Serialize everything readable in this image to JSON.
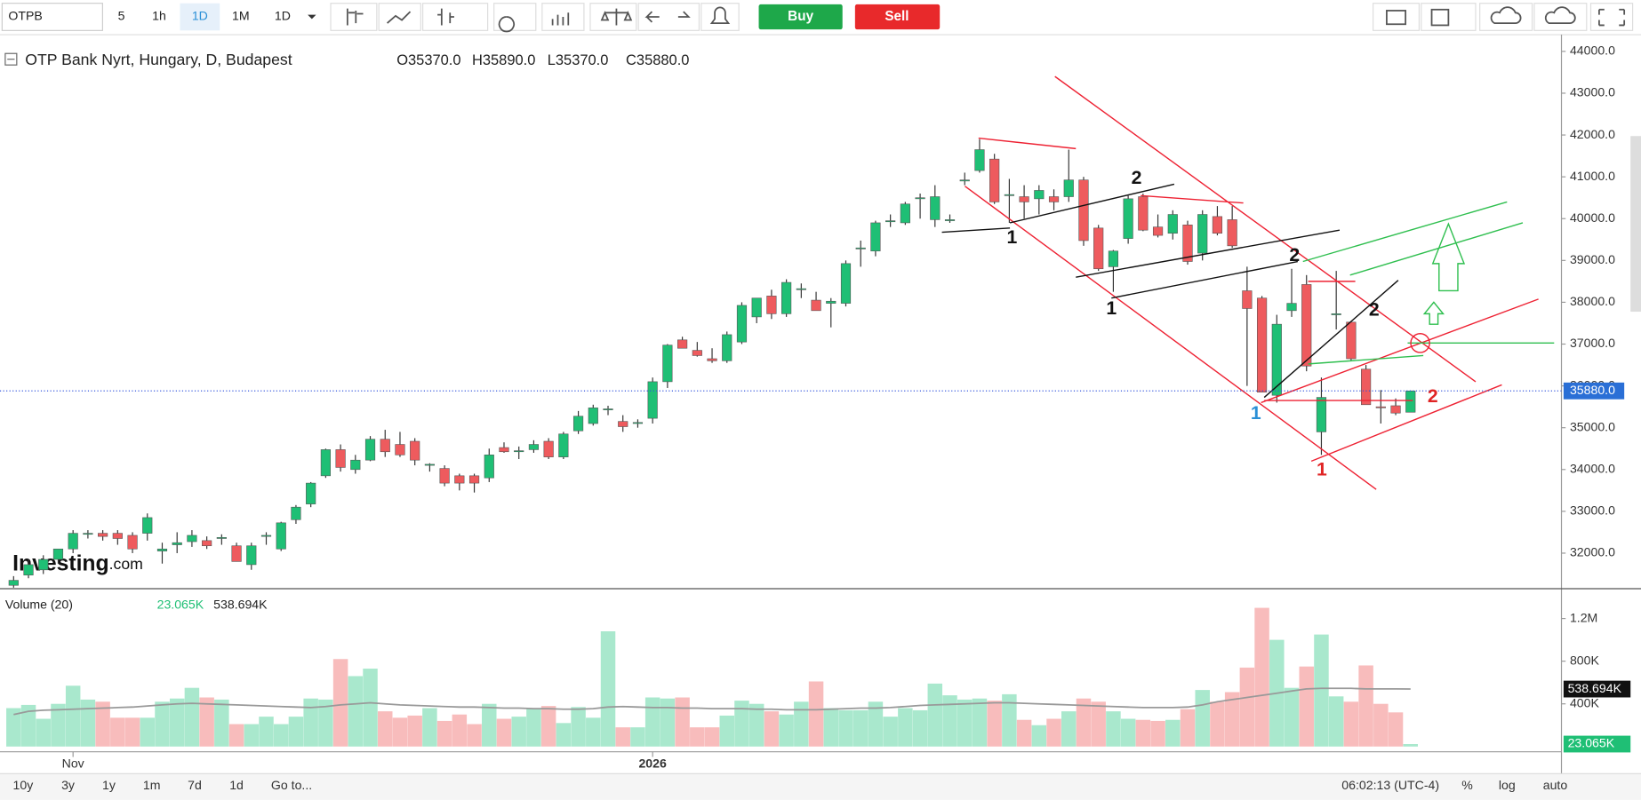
{
  "toolbar": {
    "symbol": "OTPB",
    "intervals": [
      "5",
      "1h",
      "1D",
      "1M",
      "1D"
    ],
    "buy": "Buy",
    "sell": "Sell"
  },
  "legend": {
    "title": "OTP Bank Nyrt, Hungary, D, Budapest",
    "open": "O35370.0",
    "high": "H35890.0",
    "low": "L35370.0",
    "close": "C35880.0"
  },
  "chart_data": {
    "type": "candlestick",
    "categories": [
      null,
      null,
      null,
      null,
      "Nov",
      null,
      null,
      null,
      null,
      null,
      null,
      null,
      null,
      null,
      null,
      null,
      null,
      null,
      null,
      null,
      null,
      null,
      null,
      null,
      null,
      null,
      null,
      null,
      null,
      null,
      null,
      null,
      null,
      null,
      null,
      null,
      null,
      null,
      null,
      null,
      null,
      null,
      null,
      "2026",
      null,
      null,
      null,
      null,
      null,
      null,
      null,
      null,
      null,
      null,
      null,
      null,
      null,
      null,
      null,
      null,
      null,
      null,
      null,
      null,
      null,
      null,
      null,
      null,
      null,
      null,
      null,
      null,
      null,
      null,
      null,
      null,
      null,
      null,
      null,
      null,
      null,
      null,
      null,
      null,
      null,
      null,
      null,
      null,
      null,
      null,
      null,
      null,
      null,
      null,
      null
    ],
    "open": [
      31230,
      31475,
      31600,
      31850,
      32100,
      32450,
      32475,
      32475,
      32425,
      32475,
      32050,
      32200,
      32275,
      32300,
      32350,
      32175,
      31725,
      32400,
      32100,
      32800,
      33175,
      33850,
      34475,
      34000,
      34225,
      34725,
      34600,
      34675,
      34100,
      34025,
      33850,
      33850,
      33800,
      34525,
      34425,
      34475,
      34675,
      34300,
      34925,
      35100,
      35425,
      35150,
      35100,
      35225,
      36100,
      37100,
      36850,
      36650,
      36600,
      37050,
      37650,
      38150,
      37725,
      38300,
      38050,
      37975,
      37975,
      39275,
      39225,
      39925,
      39900,
      40475,
      39975,
      39975,
      40900,
      41150,
      41425,
      40550,
      40525,
      40475,
      40525,
      40525,
      40925,
      39775,
      38850,
      39525,
      40525,
      39800,
      39650,
      39850,
      39175,
      40050,
      39975,
      38275,
      38100,
      35775,
      37800,
      38425,
      34900,
      37700,
      37525,
      36400,
      35500,
      35525,
      35370
    ],
    "high": [
      31450,
      31850,
      31950,
      32100,
      32550,
      32550,
      32550,
      32550,
      32500,
      32950,
      32250,
      32500,
      32550,
      32400,
      32450,
      32250,
      32250,
      32500,
      32750,
      33150,
      33700,
      34500,
      34600,
      34350,
      34800,
      34950,
      34900,
      34750,
      34150,
      34100,
      33900,
      33900,
      34500,
      34650,
      34550,
      34700,
      34750,
      34900,
      35400,
      35550,
      35525,
      35300,
      35200,
      36200,
      37000,
      37175,
      37050,
      36900,
      37300,
      38000,
      38100,
      38300,
      38550,
      38450,
      38250,
      38100,
      39000,
      39475,
      39950,
      40100,
      40400,
      40600,
      40800,
      40100,
      41100,
      41900,
      41550,
      40950,
      40800,
      40800,
      40700,
      41650,
      41000,
      39850,
      39250,
      40550,
      40600,
      40100,
      40200,
      39950,
      40200,
      40300,
      40300,
      38850,
      38150,
      37700,
      38800,
      38650,
      36200,
      38750,
      37550,
      36500,
      35900,
      35700,
      35890
    ],
    "low": [
      31100,
      31400,
      31500,
      31750,
      32000,
      32350,
      32300,
      32200,
      32000,
      32300,
      31750,
      32000,
      32150,
      32100,
      32200,
      31800,
      31600,
      32200,
      32050,
      32700,
      33100,
      33800,
      33950,
      33900,
      34200,
      34300,
      34300,
      34100,
      33950,
      33600,
      33500,
      33450,
      33700,
      34400,
      34250,
      34400,
      34250,
      34250,
      34850,
      35050,
      35300,
      34900,
      35000,
      35100,
      35950,
      36900,
      36700,
      36550,
      36550,
      37000,
      37500,
      37600,
      37650,
      38100,
      37800,
      37400,
      37900,
      38850,
      39100,
      39800,
      39850,
      40000,
      39800,
      39900,
      40800,
      41100,
      40350,
      39900,
      40000,
      40100,
      40200,
      40400,
      39350,
      38750,
      38250,
      39400,
      39700,
      39550,
      39500,
      38900,
      39000,
      39600,
      39300,
      36000,
      35850,
      35600,
      37650,
      36350,
      34350,
      37350,
      36600,
      35550,
      35100,
      35300,
      35370
    ],
    "close": [
      31350,
      31725,
      31850,
      32100,
      32475,
      32475,
      32400,
      32350,
      32100,
      32850,
      32100,
      32250,
      32425,
      32175,
      32375,
      31800,
      32175,
      32425,
      32725,
      33100,
      33675,
      34475,
      34050,
      34225,
      34725,
      34425,
      34350,
      34225,
      34125,
      33675,
      33675,
      33675,
      34350,
      34425,
      34450,
      34600,
      34300,
      34850,
      35275,
      35475,
      35450,
      35025,
      35125,
      36100,
      36975,
      36900,
      36725,
      36600,
      37225,
      37925,
      38100,
      37725,
      38475,
      38325,
      37800,
      38025,
      38925,
      39300,
      39900,
      39950,
      40350,
      40500,
      40525,
      39975,
      40925,
      41650,
      40400,
      40575,
      40400,
      40675,
      40400,
      40925,
      39475,
      38800,
      39225,
      40475,
      39725,
      39600,
      40100,
      38975,
      40100,
      39650,
      39350,
      37850,
      35850,
      37475,
      37975,
      36475,
      35725,
      37725,
      36650,
      35550,
      35475,
      35350,
      35880
    ],
    "colors": {
      "up": "#1fbf75",
      "down": "#ee5b5e"
    },
    "ylim": [
      31175,
      44275
    ],
    "yticks": [
      {
        "value": 32000,
        "label": "32000.0"
      },
      {
        "value": 33000,
        "label": "33000.0"
      },
      {
        "value": 34000,
        "label": "34000.0"
      },
      {
        "value": 35000,
        "label": "35000.0"
      },
      {
        "value": 36000,
        "label": "36000.0"
      },
      {
        "value": 37000,
        "label": "37000.0"
      },
      {
        "value": 38000,
        "label": "38000.0"
      },
      {
        "value": 39000,
        "label": "39000.0"
      },
      {
        "value": 40000,
        "label": "40000.0"
      },
      {
        "value": 41000,
        "label": "41000.0"
      },
      {
        "value": 42000,
        "label": "42000.0"
      },
      {
        "value": 43000,
        "label": "43000.0"
      },
      {
        "value": 44000,
        "label": "44000.0"
      }
    ],
    "last_price": {
      "value": 35880,
      "label": "35880.0"
    },
    "annotations": [
      {
        "text": "1",
        "color": "#111111"
      },
      {
        "text": "2",
        "color": "#111111"
      },
      {
        "text": "1",
        "color": "#111111"
      },
      {
        "text": "2",
        "color": "#111111"
      },
      {
        "text": "2",
        "color": "#111111"
      },
      {
        "text": "1",
        "color": "#2a8fd6"
      },
      {
        "text": "1",
        "color": "#e02424"
      },
      {
        "text": "2",
        "color": "#e02424"
      }
    ]
  },
  "volume": {
    "type": "bar",
    "title": "Volume (20)",
    "last": {
      "value": 23065,
      "label": "23.065K"
    },
    "ma_last": {
      "value": 538694,
      "label": "538.694K"
    },
    "values": [
      360000,
      390000,
      260000,
      400000,
      570000,
      440000,
      420000,
      270000,
      270000,
      270000,
      420000,
      450000,
      550000,
      460000,
      440000,
      210000,
      210000,
      280000,
      210000,
      280000,
      450000,
      440000,
      820000,
      660000,
      730000,
      330000,
      270000,
      290000,
      360000,
      240000,
      300000,
      210000,
      400000,
      260000,
      280000,
      360000,
      380000,
      220000,
      370000,
      270000,
      1080000,
      180000,
      180000,
      460000,
      450000,
      460000,
      180000,
      180000,
      290000,
      430000,
      400000,
      330000,
      300000,
      420000,
      610000,
      360000,
      340000,
      340000,
      420000,
      280000,
      360000,
      340000,
      590000,
      480000,
      440000,
      450000,
      430000,
      490000,
      250000,
      200000,
      260000,
      330000,
      450000,
      420000,
      330000,
      260000,
      250000,
      240000,
      250000,
      350000,
      530000,
      420000,
      510000,
      740000,
      1300000,
      1000000,
      550000,
      750000,
      1050000,
      470000,
      420000,
      760000,
      400000,
      320000,
      23065
    ],
    "ma": [
      300000,
      330000,
      340000,
      345000,
      350000,
      355000,
      360000,
      365000,
      370000,
      380000,
      390000,
      400000,
      405000,
      400000,
      395000,
      390000,
      385000,
      380000,
      375000,
      370000,
      365000,
      375000,
      390000,
      400000,
      410000,
      400000,
      390000,
      385000,
      380000,
      375000,
      370000,
      370000,
      365000,
      360000,
      360000,
      355000,
      355000,
      350000,
      350000,
      355000,
      370000,
      375000,
      370000,
      365000,
      365000,
      360000,
      360000,
      355000,
      355000,
      355000,
      350000,
      350000,
      345000,
      345000,
      345000,
      350000,
      355000,
      360000,
      360000,
      365000,
      375000,
      385000,
      390000,
      395000,
      400000,
      405000,
      410000,
      410000,
      405000,
      400000,
      395000,
      390000,
      385000,
      380000,
      375000,
      370000,
      365000,
      365000,
      365000,
      370000,
      390000,
      420000,
      440000,
      460000,
      480000,
      500000,
      520000,
      540000,
      545000,
      545000,
      545000,
      540000,
      540000,
      540000,
      538694
    ],
    "ylim": [
      0,
      1460000
    ],
    "yticks": [
      {
        "value": 400000,
        "label": "400K"
      },
      {
        "value": 800000,
        "label": "800K"
      },
      {
        "value": 1200000,
        "label": "1.2M"
      }
    ]
  },
  "footer": {
    "ranges": [
      "10y",
      "3y",
      "1y",
      "1m",
      "7d",
      "1d"
    ],
    "goto": "Go to...",
    "time": "06:02:13 (UTC-4)",
    "options": [
      "%",
      "log",
      "auto"
    ]
  }
}
